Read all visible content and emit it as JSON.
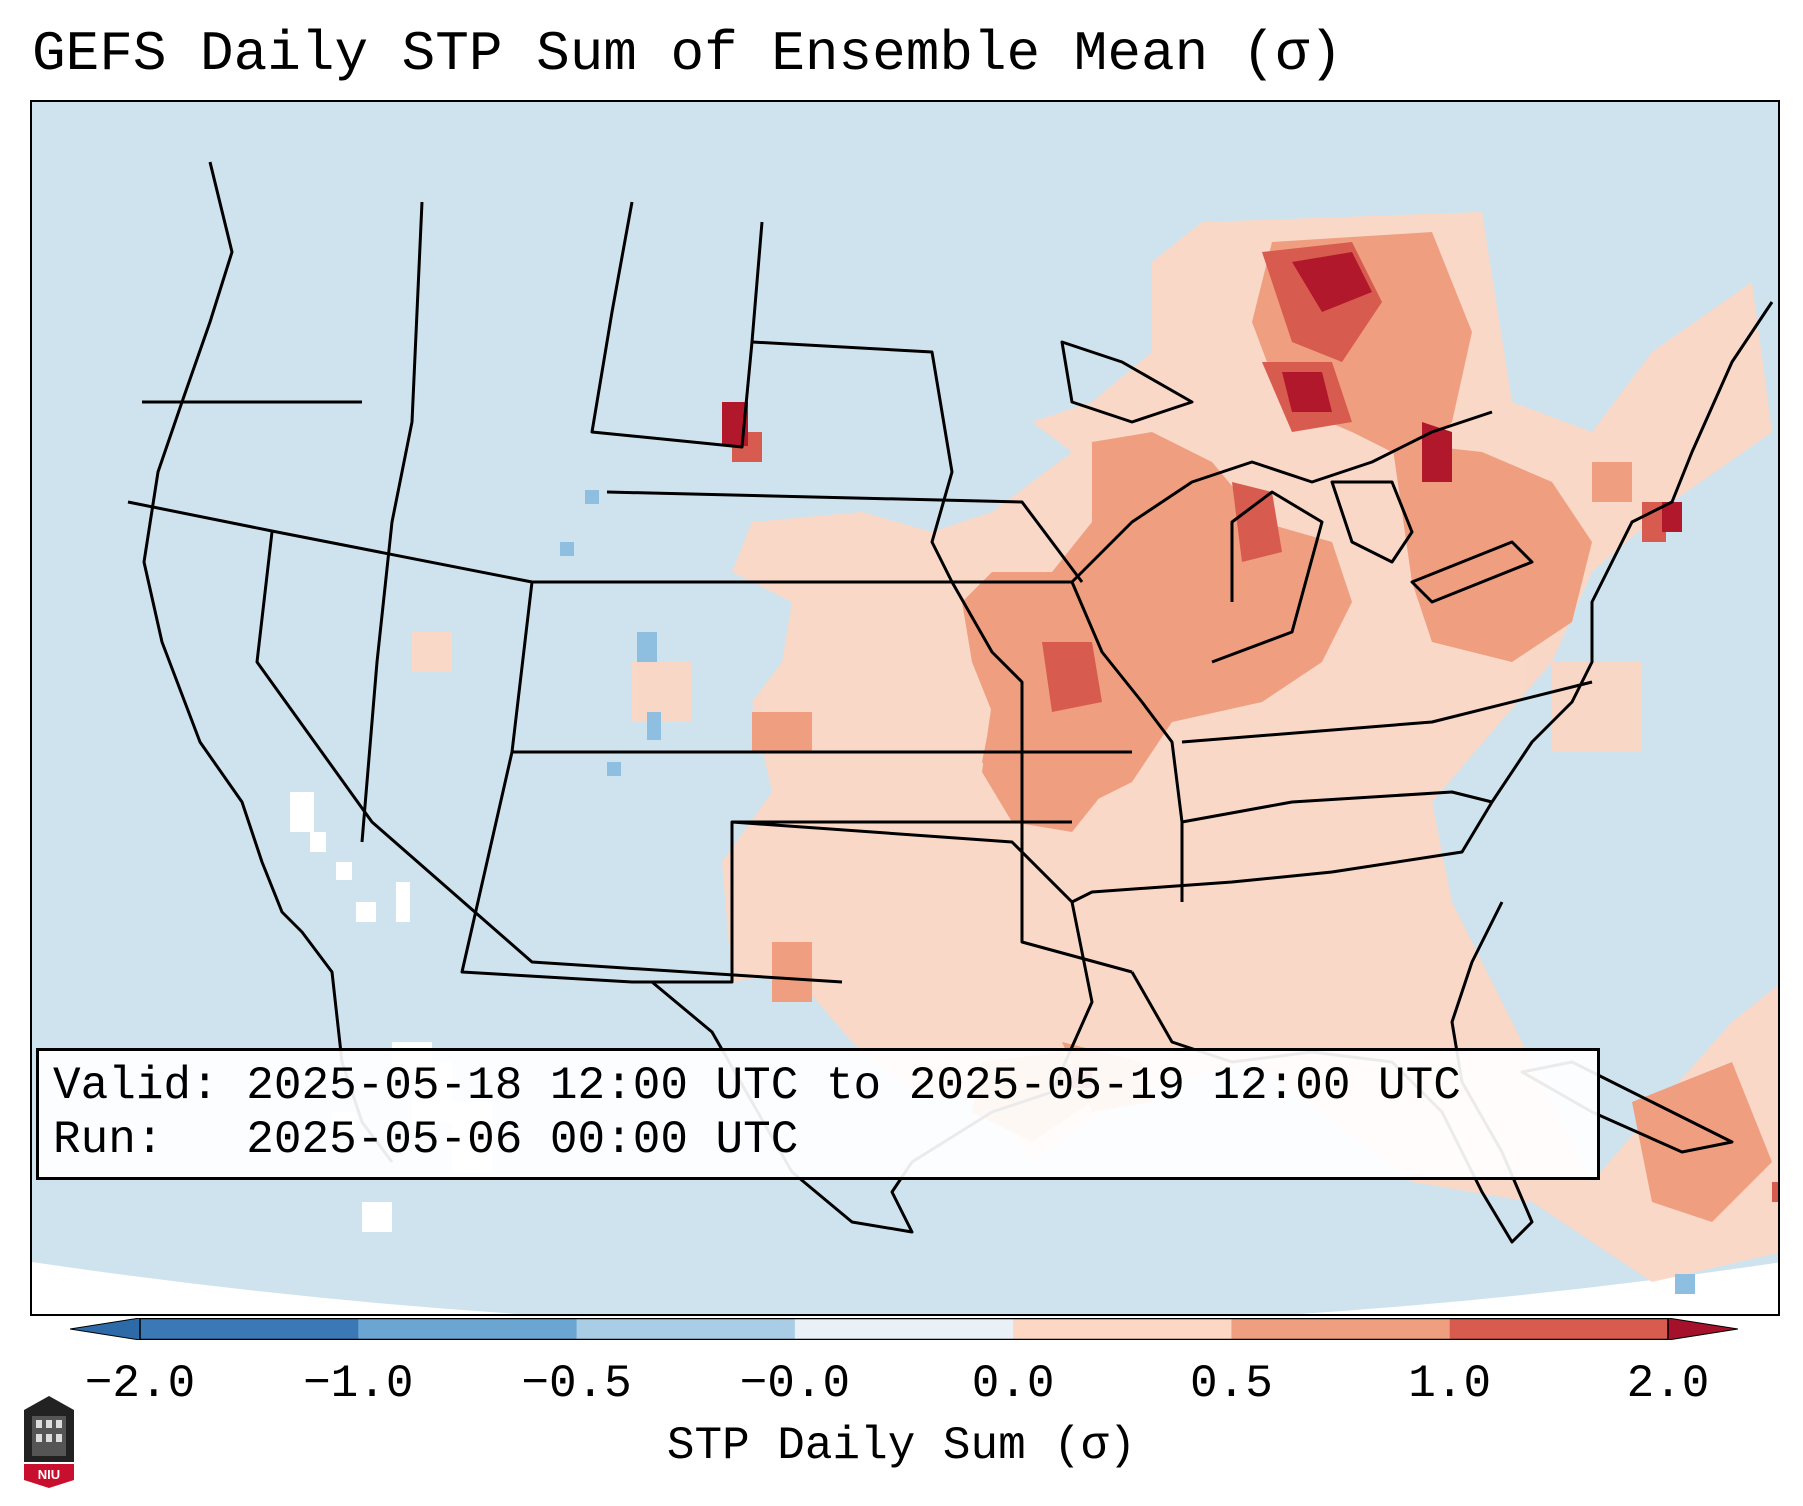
{
  "title": "GEFS Daily STP Sum of Ensemble Mean (σ)",
  "legend": {
    "valid_label": "Valid:",
    "valid_value": "2025-05-18 12:00 UTC to 2025-05-19 12:00 UTC",
    "run_label": "Run:",
    "run_value": "2025-05-06 00:00 UTC"
  },
  "colorbar": {
    "label": "STP Daily Sum (σ)",
    "ticks": [
      "−2.0",
      "−1.0",
      "−0.5",
      "−0.0",
      "0.0",
      "0.5",
      "1.0",
      "2.0"
    ],
    "colors": [
      "#3a78b6",
      "#6ba6d3",
      "#a9cde5",
      "#e9f1f7",
      "#fbd7c4",
      "#ef9f80",
      "#d85b4f",
      "#b2182b"
    ],
    "extend_low_color": "#2d6aa8",
    "extend_high_color": "#a5102a"
  },
  "map": {
    "background_color": "#cfe3ee",
    "coast_color": "#000000",
    "anomaly_regions": [
      {
        "name": "great-lakes-upper-midwest",
        "level": "1.0"
      },
      {
        "name": "ohio-valley",
        "level": "0.5"
      },
      {
        "name": "mississippi-valley",
        "level": "0.5"
      },
      {
        "name": "southern-plains",
        "level": "0.0"
      },
      {
        "name": "gulf-coast",
        "level": "0.5"
      },
      {
        "name": "northeast",
        "level": "0.5"
      },
      {
        "name": "atlantic-offshore",
        "level": "0.0"
      },
      {
        "name": "caribbean",
        "level": "0.5"
      }
    ]
  },
  "logo": {
    "text": "NIU"
  }
}
